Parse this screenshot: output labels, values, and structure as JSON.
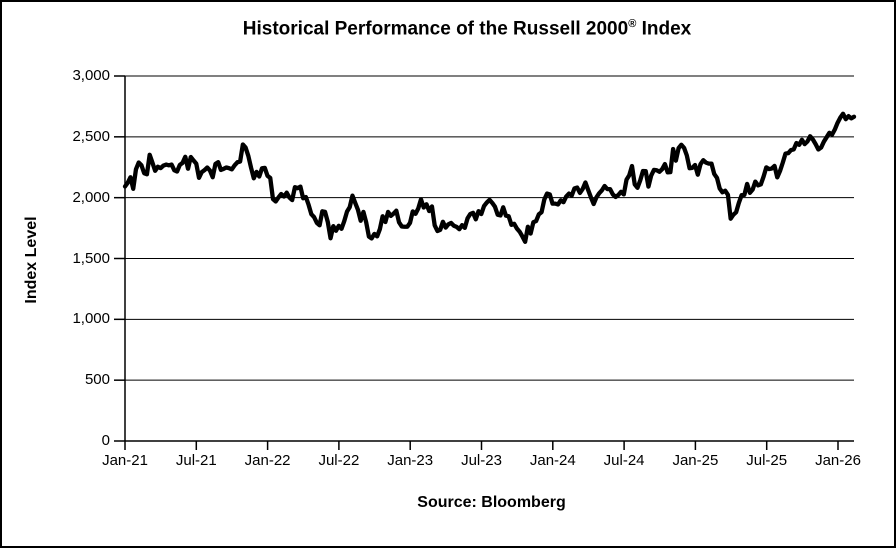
{
  "title": {
    "text": "Historical Performance of the Russell 2000",
    "registered_mark": "®",
    "suffix": " Index"
  },
  "y_axis": {
    "label": "Index Level",
    "tick_values": [
      3000,
      2500,
      2000,
      1500,
      1000,
      500,
      0
    ],
    "tick_labels": [
      "3,000",
      "2,500",
      "2,000",
      "1,500",
      "1,000",
      "500",
      "0"
    ]
  },
  "x_axis": {
    "tick_labels": [
      "Jan-21",
      "Jul-21",
      "Jan-22",
      "Jul-22",
      "Jan-23",
      "Jul-23",
      "Jan-24",
      "Jul-24",
      "Jan-25",
      "Jul-25",
      "Jan-26"
    ]
  },
  "footer": {
    "source": "Source: Bloomberg"
  },
  "chart_data": {
    "type": "line",
    "title": "Historical Performance of the Russell 2000® Index",
    "ylabel": "Index Level",
    "xlabel": "",
    "caption": "Source: Bloomberg",
    "ylim": [
      0,
      3000
    ],
    "y_tick_step": 500,
    "x_tick_labels": [
      "Jan-21",
      "Jul-21",
      "Jan-22",
      "Jul-22",
      "Jan-23",
      "Jul-23",
      "Jan-24",
      "Jul-24",
      "Jan-25",
      "Jul-25",
      "Jan-26"
    ],
    "grid": "horizontal",
    "legend_position": "none",
    "line_color": "#000000",
    "series": [
      {
        "name": "Russell 2000 Index Level",
        "cadence": "weekly",
        "values": [
          2092,
          2123,
          2168,
          2073,
          2233,
          2289,
          2266,
          2201,
          2192,
          2353,
          2288,
          2221,
          2254,
          2243,
          2263,
          2272,
          2266,
          2272,
          2225,
          2215,
          2269,
          2286,
          2336,
          2238,
          2334,
          2306,
          2280,
          2163,
          2210,
          2226,
          2248,
          2223,
          2168,
          2277,
          2292,
          2228,
          2237,
          2248,
          2242,
          2233,
          2266,
          2291,
          2297,
          2437,
          2412,
          2343,
          2246,
          2159,
          2212,
          2174,
          2242,
          2245,
          2180,
          2162,
          1988,
          1969,
          2002,
          2030,
          2009,
          2041,
          2001,
          1980,
          2086,
          2078,
          2091,
          1995,
          2005,
          1941,
          1864,
          1840,
          1793,
          1773,
          1888,
          1883,
          1800,
          1666,
          1766,
          1728,
          1769,
          1744,
          1807,
          1885,
          1922,
          2017,
          1957,
          1900,
          1810,
          1883,
          1798,
          1680,
          1665,
          1702,
          1682,
          1742,
          1847,
          1800,
          1883,
          1850,
          1869,
          1893,
          1797,
          1763,
          1761,
          1761,
          1793,
          1887,
          1867,
          1911,
          1986,
          1919,
          1946,
          1890,
          1928,
          1773,
          1726,
          1735,
          1802,
          1754,
          1781,
          1792,
          1769,
          1760,
          1741,
          1774,
          1752,
          1831,
          1866,
          1875,
          1822,
          1889,
          1865,
          1931,
          1960,
          1982,
          1957,
          1925,
          1859,
          1854,
          1921,
          1852,
          1847,
          1777,
          1785,
          1746,
          1720,
          1681,
          1637,
          1761,
          1705,
          1798,
          1808,
          1863,
          1881,
          1985,
          2034,
          2027,
          1951,
          1951,
          1944,
          1978,
          1963,
          2010,
          2033,
          2017,
          2076,
          2083,
          2039,
          2072,
          2125,
          2063,
          2003,
          1948,
          2002,
          2036,
          2060,
          2096,
          2070,
          2070,
          2027,
          2006,
          2022,
          2048,
          2027,
          2148,
          2184,
          2260,
          2109,
          2081,
          2142,
          2219,
          2218,
          2091,
          2182,
          2228,
          2225,
          2213,
          2234,
          2276,
          2208,
          2210,
          2400,
          2304,
          2407,
          2435,
          2409,
          2347,
          2242,
          2245,
          2268,
          2189,
          2276,
          2308,
          2288,
          2280,
          2280,
          2195,
          2163,
          2075,
          2044,
          2057,
          2023,
          1827,
          1860,
          1881,
          1958,
          2021,
          2023,
          2113,
          2040,
          2066,
          2132,
          2101,
          2109,
          2173,
          2249,
          2235,
          2240,
          2261,
          2167,
          2219,
          2287,
          2362,
          2366,
          2391,
          2397,
          2449,
          2434,
          2476,
          2440,
          2462,
          2505,
          2478,
          2440,
          2396,
          2412,
          2460,
          2496,
          2533,
          2518,
          2560,
          2615,
          2658,
          2690,
          2645,
          2670,
          2652,
          2665
        ]
      }
    ]
  }
}
